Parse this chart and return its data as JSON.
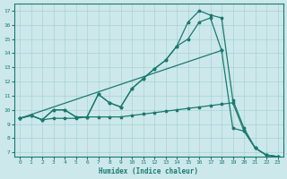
{
  "xlabel": "Humidex (Indice chaleur)",
  "bg_color": "#cce8eb",
  "line_color": "#1a7a6e",
  "grid_color": "#9ecece",
  "line_A": {
    "x": [
      0,
      1,
      2,
      3,
      4,
      5,
      6,
      7,
      8,
      9,
      10,
      11,
      12,
      13,
      14,
      15,
      16,
      17,
      18
    ],
    "y": [
      9.4,
      9.6,
      9.3,
      10.0,
      10.0,
      9.5,
      9.5,
      11.1,
      10.5,
      10.2,
      11.5,
      12.2,
      12.9,
      13.5,
      14.5,
      15.0,
      16.2,
      16.5,
      14.2
    ]
  },
  "line_B": {
    "x": [
      0,
      1,
      2,
      3,
      4,
      5,
      6,
      7,
      8,
      9,
      10,
      11,
      12,
      13,
      14,
      15,
      16,
      17,
      18,
      19,
      20,
      21,
      22,
      23
    ],
    "y": [
      9.4,
      9.6,
      9.3,
      10.0,
      10.0,
      9.5,
      9.5,
      11.1,
      10.5,
      10.2,
      11.5,
      12.2,
      12.9,
      13.5,
      14.5,
      16.2,
      17.0,
      16.7,
      16.5,
      10.7,
      8.7,
      7.3,
      6.8,
      6.7
    ]
  },
  "line_C": {
    "x": [
      0,
      18,
      19,
      20,
      21,
      22,
      23
    ],
    "y": [
      9.4,
      14.2,
      8.7,
      8.5,
      7.3,
      6.8,
      6.7
    ]
  },
  "line_D": {
    "x": [
      0,
      1,
      2,
      3,
      4,
      5,
      6,
      7,
      8,
      9,
      10,
      11,
      12,
      13,
      14,
      15,
      16,
      17,
      18,
      19,
      20,
      21,
      22,
      23
    ],
    "y": [
      9.4,
      9.6,
      9.3,
      9.4,
      9.4,
      9.4,
      9.5,
      9.5,
      9.5,
      9.5,
      9.6,
      9.7,
      9.8,
      9.9,
      10.0,
      10.1,
      10.2,
      10.3,
      10.4,
      10.5,
      8.5,
      7.3,
      6.8,
      6.7
    ]
  },
  "xlim": [
    -0.5,
    23.5
  ],
  "ylim": [
    6.7,
    17.5
  ],
  "xticks": [
    0,
    1,
    2,
    3,
    4,
    5,
    6,
    7,
    8,
    9,
    10,
    11,
    12,
    13,
    14,
    15,
    16,
    17,
    18,
    19,
    20,
    21,
    22,
    23
  ],
  "yticks": [
    7,
    8,
    9,
    10,
    11,
    12,
    13,
    14,
    15,
    16,
    17
  ]
}
